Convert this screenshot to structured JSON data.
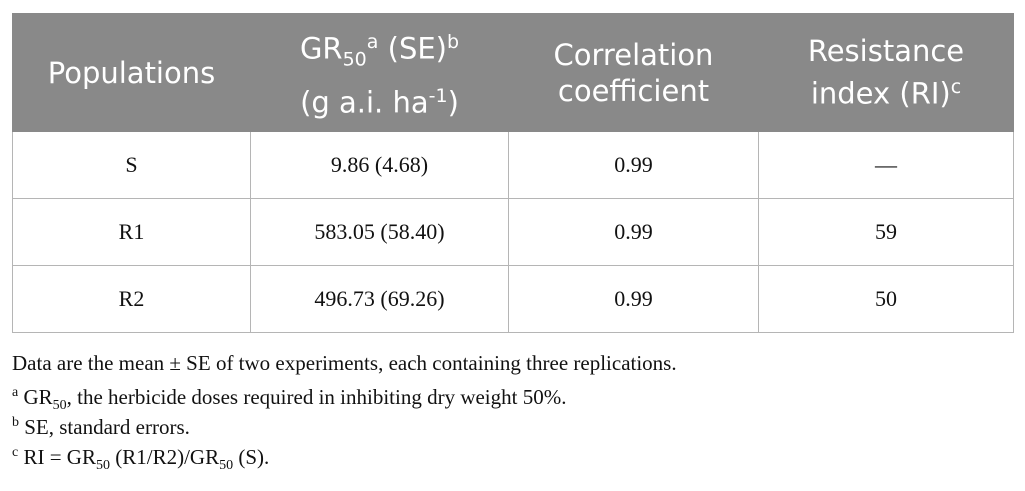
{
  "table": {
    "header": [
      {
        "parts": [
          "Populations"
        ]
      },
      {
        "parts": [
          "GR",
          "50",
          "a",
          " (SE)",
          "b",
          "(g a.i. ha",
          "-1",
          ")"
        ]
      },
      {
        "parts": [
          "Correlation",
          "coefficient"
        ]
      },
      {
        "parts": [
          "Resistance",
          "index (RI)",
          "c"
        ]
      }
    ],
    "rows": [
      [
        "S",
        "9.86 (4.68)",
        "0.99",
        "—"
      ],
      [
        "R1",
        "583.05 (58.40)",
        "0.99",
        "59"
      ],
      [
        "R2",
        "496.73 (69.26)",
        "0.99",
        "50"
      ]
    ]
  },
  "footnotes": [
    {
      "parts": [
        "Data are the mean ± SE of two experiments, each containing three replications."
      ]
    },
    {
      "parts": [
        "a",
        " GR",
        "50",
        ", the herbicide doses required in inhibiting dry weight 50%."
      ]
    },
    {
      "parts": [
        "b",
        " SE, standard errors."
      ]
    },
    {
      "parts": [
        "c",
        " RI = GR",
        "50",
        " (R1/R2)/GR",
        "50",
        " (S)."
      ]
    }
  ]
}
